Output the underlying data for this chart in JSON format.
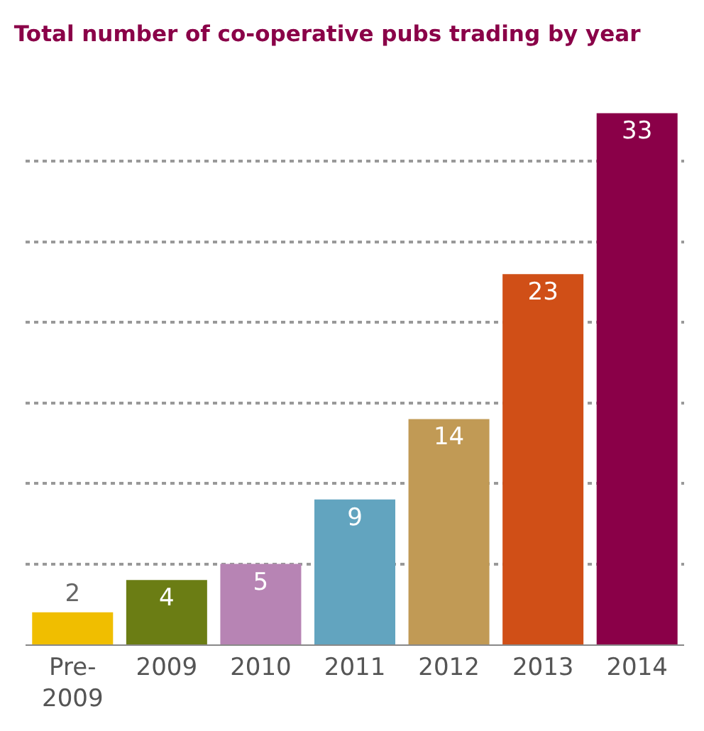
{
  "chart_data": {
    "type": "bar",
    "title": "Total number of co-operative pubs trading by year",
    "categories": [
      "Pre-\n2009",
      "2009",
      "2010",
      "2011",
      "2012",
      "2013",
      "2014"
    ],
    "values": [
      2,
      4,
      5,
      9,
      14,
      23,
      33
    ],
    "colors": [
      "#f0be00",
      "#6b7d14",
      "#b784b4",
      "#62a4bf",
      "#c19a55",
      "#d04f17",
      "#8a0048"
    ],
    "grid": "y",
    "tick_labels": "x",
    "data_labels": true
  }
}
